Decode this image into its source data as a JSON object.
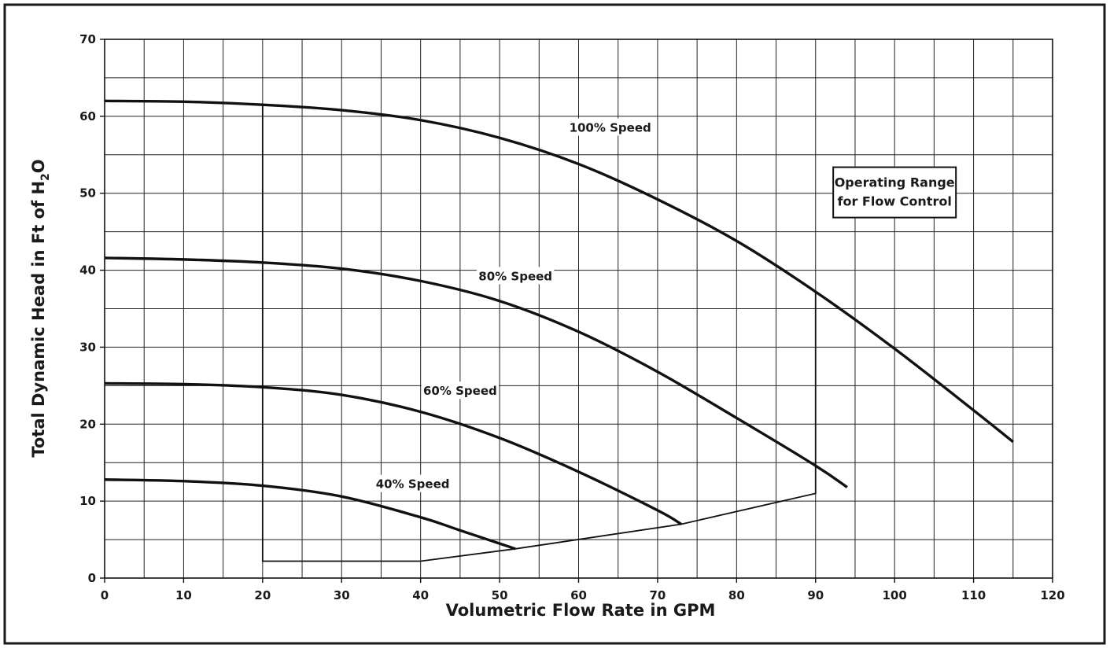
{
  "chart_data": {
    "type": "line",
    "title": "",
    "xlabel": "Volumetric Flow Rate in GPM",
    "ylabel_parts": [
      "Total Dynamic Head in Ft of H",
      "2",
      "O"
    ],
    "xlim": [
      0,
      120
    ],
    "ylim": [
      0,
      70
    ],
    "x_ticks": [
      0,
      10,
      20,
      30,
      40,
      50,
      60,
      70,
      80,
      90,
      100,
      110,
      120
    ],
    "y_ticks": [
      0,
      10,
      20,
      30,
      40,
      50,
      60,
      70
    ],
    "grid": true,
    "minor_grid_step": {
      "x": 5,
      "y": 5
    },
    "series": [
      {
        "name": "100% Speed",
        "x": [
          0,
          10,
          20,
          30,
          40,
          50,
          60,
          70,
          80,
          90,
          100,
          110,
          115
        ],
        "y": [
          62,
          61.9,
          61.5,
          60.8,
          59.5,
          57.2,
          53.8,
          49.2,
          43.8,
          37.2,
          29.8,
          21.8,
          17.7
        ]
      },
      {
        "name": "80% Speed",
        "x": [
          0,
          10,
          20,
          30,
          40,
          50,
          60,
          70,
          80,
          90,
          94
        ],
        "y": [
          41.6,
          41.4,
          41,
          40.2,
          38.6,
          36,
          32,
          26.8,
          20.8,
          14.6,
          11.8
        ]
      },
      {
        "name": "60% Speed",
        "x": [
          0,
          10,
          20,
          30,
          40,
          50,
          60,
          70,
          73
        ],
        "y": [
          25.3,
          25.2,
          24.8,
          23.8,
          21.6,
          18.2,
          13.8,
          8.8,
          7
        ]
      },
      {
        "name": "40% Speed",
        "x": [
          0,
          10,
          20,
          30,
          40,
          45,
          52
        ],
        "y": [
          12.8,
          12.6,
          12,
          10.6,
          7.9,
          6.2,
          3.8
        ]
      }
    ],
    "operating_range_boundary": {
      "x": [
        20,
        20,
        40,
        52,
        73,
        90,
        90
      ],
      "y": [
        61.5,
        2.2,
        2.2,
        3.8,
        7,
        11,
        37.2
      ]
    },
    "annotations": [
      {
        "text": "100% Speed",
        "x": 64,
        "y": 58.5
      },
      {
        "text": "80% Speed",
        "x": 52,
        "y": 39.2
      },
      {
        "text": "60% Speed",
        "x": 45,
        "y": 24.3
      },
      {
        "text": "40% Speed",
        "x": 39,
        "y": 12.2
      }
    ],
    "boxed_annotation": {
      "lines": [
        "Operating Range",
        "for Flow Control"
      ],
      "x": 100,
      "y": 49.5
    }
  }
}
